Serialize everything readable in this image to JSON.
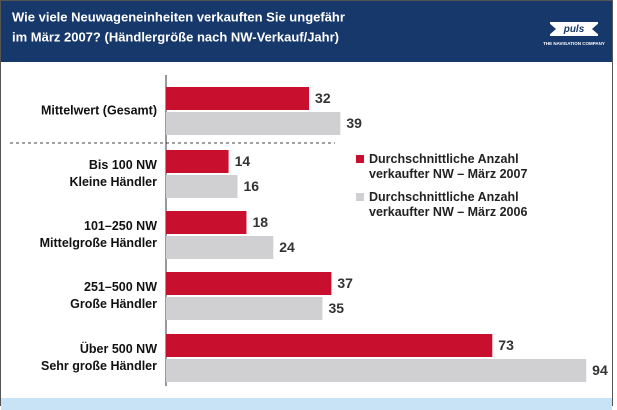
{
  "chart_data": {
    "type": "bar",
    "orientation": "horizontal",
    "title": [
      "Wie viele Neuwageneinheiten verkauften Sie ungefähr",
      "im März 2007? (Händlergröße nach NW-Verkauf/Jahr)"
    ],
    "logo": {
      "name": "puls",
      "tagline": "THE NAVIGATION COMPANY"
    },
    "categories": [
      [
        "Mittelwert (Gesamt)"
      ],
      [
        "Bis 100 NW",
        "Kleine Händler"
      ],
      [
        "101–250 NW",
        "Mittelgroße Händler"
      ],
      [
        "251–500 NW",
        "Große Händler"
      ],
      [
        "Über 500 NW",
        "Sehr große Händler"
      ]
    ],
    "series": [
      {
        "name": "Durchschnittliche Anzahl verkaufter NW – März 2007",
        "color": "#c8102e",
        "values": [
          32,
          14,
          18,
          37,
          73
        ]
      },
      {
        "name": "Durchschnittliche Anzahl verkaufter NW – März 2006",
        "color": "#d0d0d3",
        "values": [
          39,
          16,
          24,
          35,
          94
        ]
      }
    ],
    "xlim": [
      0,
      100
    ]
  }
}
